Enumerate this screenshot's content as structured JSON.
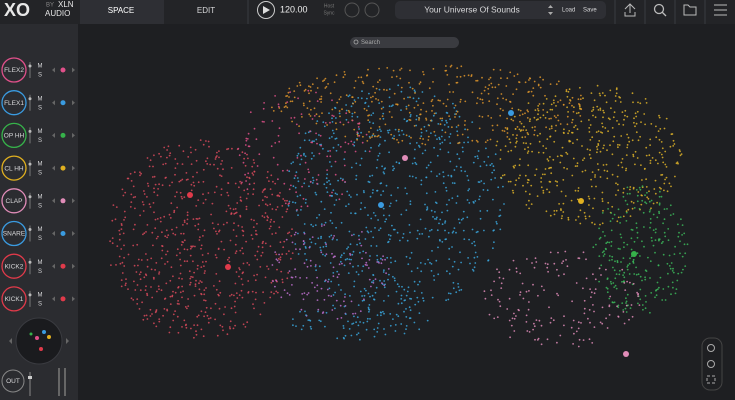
{
  "header": {
    "logo": "XO",
    "by": "BY",
    "brand": "XLN",
    "brand2": "AUDIO",
    "tabs": [
      "SPACE",
      "EDIT"
    ],
    "tempo": "120.00",
    "sync": [
      "Host",
      "Sync"
    ],
    "preset": "Your Universe Of Sounds",
    "load": "Load",
    "save": "Save"
  },
  "search": "Search",
  "channels": [
    {
      "name": "FLEX2",
      "mute": "M",
      "solo": "S",
      "color": "#e0508a"
    },
    {
      "name": "FLEX1",
      "mute": "M",
      "solo": "S",
      "color": "#3a9be0"
    },
    {
      "name": "OP HH",
      "mute": "M",
      "solo": "S",
      "color": "#36b24a"
    },
    {
      "name": "CL HH",
      "mute": "M",
      "solo": "S",
      "color": "#e0b020"
    },
    {
      "name": "CLAP",
      "mute": "M",
      "solo": "S",
      "color": "#e08cb8"
    },
    {
      "name": "SNARE",
      "mute": "M",
      "solo": "S",
      "color": "#3a9be0"
    },
    {
      "name": "KICK2",
      "mute": "M",
      "solo": "S",
      "color": "#e03a4a"
    },
    {
      "name": "KICK1",
      "mute": "M",
      "solo": "S",
      "color": "#e03a4a"
    }
  ],
  "output": "OUT"
}
